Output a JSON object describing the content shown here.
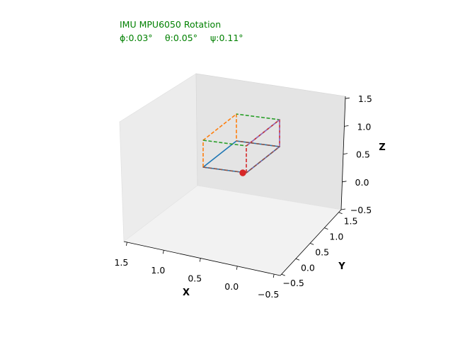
{
  "title": {
    "line1": "IMU MPU6050 Rotation",
    "phi": "ϕ:0.03°",
    "theta": "θ:0.05°",
    "psi": "ψ:0.11°"
  },
  "chart_data": {
    "type": "line",
    "projection": "3d",
    "xlabel": "X",
    "ylabel": "Y",
    "zlabel": "Z",
    "xlim": [
      1.5,
      -0.5
    ],
    "ylim": [
      -0.5,
      1.5
    ],
    "zlim": [
      -0.5,
      1.5
    ],
    "x_ticks": [
      "1.5",
      "1.0",
      "0.5",
      "0.0",
      "−0.5"
    ],
    "y_ticks": [
      "−0.5",
      "0.0",
      "0.5",
      "1.0",
      "1.5"
    ],
    "z_ticks": [
      "−0.5",
      "0.0",
      "0.5",
      "1.0",
      "1.5"
    ],
    "angles_deg": {
      "phi": 0.03,
      "theta": 0.05,
      "psi": 0.11
    },
    "origin_point": {
      "x": 0,
      "y": 0,
      "z": 0,
      "color": "#d62728"
    },
    "series": [
      {
        "color": "#1f77b4",
        "style": "solid",
        "values": [
          [
            0,
            0,
            0
          ],
          [
            1,
            0,
            0
          ],
          [
            1,
            1,
            0
          ],
          [
            0,
            1,
            0
          ],
          [
            0,
            0,
            0
          ]
        ]
      },
      {
        "color": "#ff7f0e",
        "style": "dashed",
        "values": [
          [
            1,
            0,
            0
          ],
          [
            1,
            0,
            -1
          ],
          [
            1,
            1,
            -1
          ],
          [
            1,
            1,
            0
          ]
        ]
      },
      {
        "color": "#2ca02c",
        "style": "dashed",
        "values": [
          [
            1,
            0,
            -1
          ],
          [
            0,
            0,
            -1
          ],
          [
            0,
            1,
            -1
          ],
          [
            1,
            1,
            -1
          ]
        ]
      },
      {
        "color": "#d62728",
        "style": "dashed",
        "values": [
          [
            0,
            0,
            0
          ],
          [
            0,
            0,
            -1
          ],
          [
            0,
            1,
            -1
          ],
          [
            0,
            1,
            0
          ]
        ]
      },
      {
        "color": "#9467bd",
        "style": "dashed",
        "values": [
          [
            0,
            0,
            0
          ],
          [
            0,
            1,
            0
          ],
          [
            0,
            1,
            -1
          ],
          [
            0,
            0,
            -1
          ]
        ]
      },
      {
        "color": "#8c564b",
        "style": "dashed",
        "values": [
          [
            1,
            0,
            0
          ],
          [
            0,
            0,
            0
          ],
          [
            0,
            1,
            0
          ],
          [
            1,
            1,
            0
          ]
        ]
      }
    ],
    "grid": false,
    "legend": null
  }
}
